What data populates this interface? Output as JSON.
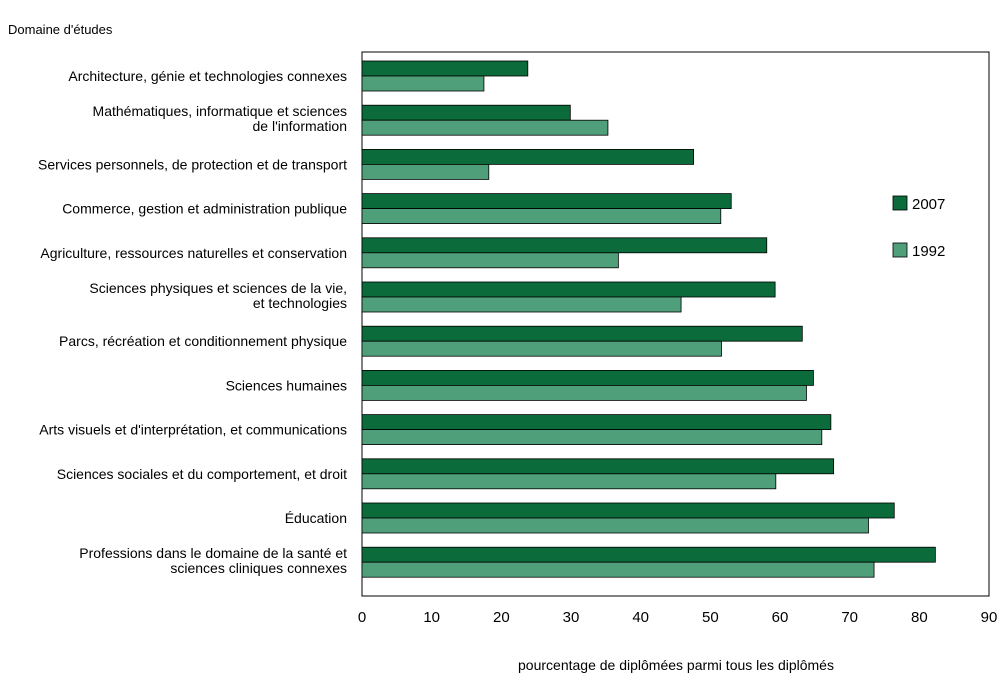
{
  "chart_data": {
    "type": "bar",
    "orientation": "horizontal",
    "title": "",
    "ylabel": "Domaine d'études",
    "xlabel": "pourcentage de diplômées parmi tous les diplômés",
    "xlim": [
      0,
      90
    ],
    "xticks": [
      "0",
      "10",
      "20",
      "30",
      "40",
      "50",
      "60",
      "70",
      "80",
      "90"
    ],
    "grid": false,
    "legend_position": "right",
    "categories": [
      [
        "Architecture, génie et technologies connexes"
      ],
      [
        "Mathématiques, informatique et sciences",
        "de l'information"
      ],
      [
        "Services personnels, de protection et de transport"
      ],
      [
        "Commerce, gestion et administration publique"
      ],
      [
        "Agriculture, ressources naturelles et conservation"
      ],
      [
        "Sciences physiques et sciences de la vie,",
        "et technologies"
      ],
      [
        "Parcs, récréation et conditionnement physique"
      ],
      [
        "Sciences humaines"
      ],
      [
        "Arts visuels et d'interprétation, et communications"
      ],
      [
        "Sciences sociales et du comportement, et droit"
      ],
      [
        "Éducation"
      ],
      [
        "Professions dans le domaine de la santé et",
        "sciences cliniques connexes"
      ]
    ],
    "series": [
      {
        "name": "2007",
        "color": "#0b6b3a",
        "values": [
          23.8,
          29.9,
          47.6,
          53.0,
          58.1,
          59.3,
          63.2,
          64.8,
          67.3,
          67.7,
          76.4,
          82.3
        ]
      },
      {
        "name": "1992",
        "color": "#4f9f7a",
        "values": [
          17.5,
          35.3,
          18.2,
          51.5,
          36.8,
          45.8,
          51.6,
          63.8,
          66.0,
          59.4,
          72.7,
          73.5
        ]
      }
    ]
  }
}
